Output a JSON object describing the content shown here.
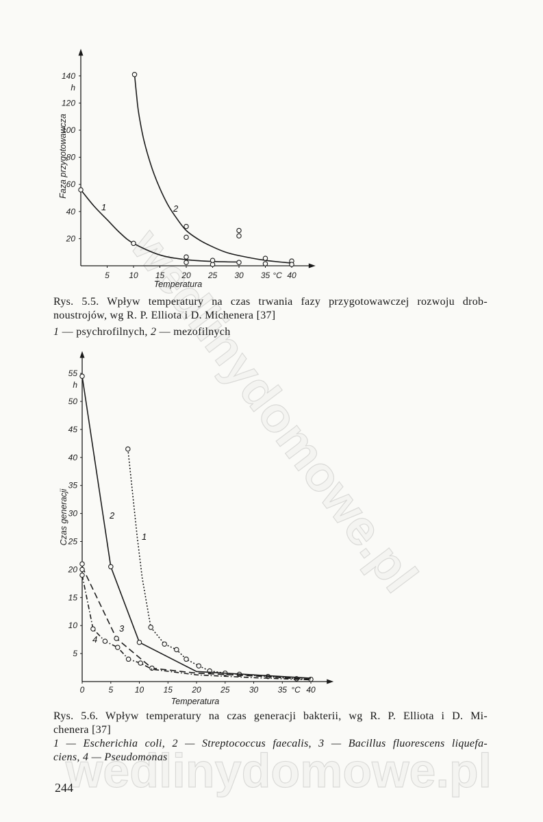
{
  "page": {
    "number": "244",
    "watermark": "wedlinydomowe.pl"
  },
  "figures": [
    {
      "caption": {
        "line1": "Rys. 5.5. Wpływ temperatury na czas trwania fazy przygotowawczej rozwoju drob-",
        "line2": "noustrojów, wg R. P. Elliota i D. Michenera [37]",
        "legend": [
          {
            "num": "1",
            "label": "— psychrofilnych,"
          },
          {
            "num": "2",
            "label": "— mezofilnych"
          }
        ]
      }
    },
    {
      "caption": {
        "line1": "Rys. 5.6. Wpływ temperatury na czas generacji bakterii, wg R. P. Elliota i D. Mi-",
        "line2": "chenera [37]",
        "legend_line1": "1 — Escherichia coli, 2 — Streptococcus faecalis, 3 — Bacillus fluorescens liquefa-",
        "legend_line2": "ciens, 4 — Pseudomonas"
      }
    }
  ],
  "chart_data": [
    {
      "type": "line",
      "xlabel": "Temperatura",
      "ylabel": "Faza przygotowawcza",
      "x_unit": "°C",
      "y_unit": "h",
      "xlim": [
        0,
        44
      ],
      "ylim": [
        0,
        158
      ],
      "xticks": [
        5,
        10,
        15,
        20,
        25,
        30,
        35,
        40
      ],
      "yticks": [
        20,
        40,
        60,
        80,
        100,
        120,
        140
      ],
      "grid": false,
      "series": [
        {
          "name": "1",
          "line_style": "solid",
          "curve": "smooth",
          "values": [
            [
              0,
              56
            ],
            [
              2.5,
              44
            ],
            [
              5,
              34
            ],
            [
              7.5,
              24
            ],
            [
              10,
              16.5
            ],
            [
              15,
              8
            ],
            [
              20,
              4.5
            ],
            [
              25,
              3.2
            ],
            [
              30,
              2.8
            ]
          ],
          "markers": [
            [
              0,
              56
            ],
            [
              10,
              16.5
            ],
            [
              20,
              2.5
            ],
            [
              25,
              1
            ],
            [
              30,
              2.5
            ]
          ]
        },
        {
          "name": "2",
          "line_style": "solid",
          "curve": "smooth",
          "values": [
            [
              10.2,
              141
            ],
            [
              10.6,
              125
            ],
            [
              11,
              112
            ],
            [
              12,
              92
            ],
            [
              13.5,
              72
            ],
            [
              15,
              57
            ],
            [
              16.5,
              45
            ],
            [
              18,
              36
            ],
            [
              20,
              26
            ],
            [
              22.5,
              19
            ],
            [
              25,
              14
            ],
            [
              27.5,
              10
            ],
            [
              30,
              7.5
            ],
            [
              35,
              4
            ],
            [
              40,
              2
            ]
          ],
          "markers": [
            [
              10.2,
              141
            ],
            [
              20,
              29
            ],
            [
              20,
              21
            ],
            [
              20,
              6.5
            ],
            [
              25,
              4
            ],
            [
              30,
              26
            ],
            [
              30,
              22
            ],
            [
              35,
              5.5
            ],
            [
              35,
              1.5
            ],
            [
              40,
              3.5
            ],
            [
              40,
              1
            ]
          ]
        }
      ]
    },
    {
      "type": "line",
      "xlabel": "Temperatura",
      "ylabel": "Czas generacji",
      "x_unit": "°C",
      "y_unit": "h",
      "xlim": [
        0,
        43.5
      ],
      "ylim": [
        0,
        58.5
      ],
      "xticks": [
        0,
        5,
        10,
        15,
        20,
        25,
        30,
        35,
        40
      ],
      "yticks": [
        5,
        10,
        15,
        20,
        25,
        30,
        35,
        40,
        45,
        50,
        55
      ],
      "grid": false,
      "series": [
        {
          "name": "1",
          "line_style": "dotted",
          "curve": "linear",
          "values": [
            [
              8,
              41.5
            ],
            [
              9.6,
              26
            ],
            [
              10.5,
              18.5
            ],
            [
              12,
              9.7
            ],
            [
              14.4,
              6.7
            ],
            [
              16.5,
              5.7
            ],
            [
              18.2,
              4
            ],
            [
              20.4,
              2.8
            ],
            [
              22.3,
              1.9
            ],
            [
              25,
              1.5
            ],
            [
              27.5,
              1.3
            ],
            [
              30,
              1.1
            ],
            [
              32.5,
              0.9
            ],
            [
              35,
              0.7
            ],
            [
              37.5,
              0.5
            ],
            [
              40,
              0.4
            ]
          ],
          "markers": [
            [
              8,
              41.5
            ],
            [
              12,
              9.7
            ],
            [
              14.4,
              6.7
            ],
            [
              16.5,
              5.7
            ],
            [
              18.2,
              4
            ],
            [
              20.4,
              2.8
            ],
            [
              22.3,
              1.9
            ],
            [
              25,
              1.5
            ],
            [
              27.5,
              1.3
            ],
            [
              32.5,
              0.9
            ],
            [
              37.5,
              0.5
            ],
            [
              40,
              0.4
            ]
          ]
        },
        {
          "name": "2",
          "line_style": "solid",
          "curve": "linear",
          "values": [
            [
              0,
              54.5
            ],
            [
              5,
              20.5
            ],
            [
              10,
              7
            ],
            [
              20,
              1.8
            ],
            [
              30,
              1.2
            ],
            [
              40,
              0.6
            ]
          ],
          "markers": [
            [
              0,
              54.5
            ],
            [
              5,
              20.5
            ],
            [
              10,
              7
            ]
          ]
        },
        {
          "name": "3",
          "line_style": "dashed",
          "curve": "linear",
          "values": [
            [
              0,
              20.5
            ],
            [
              6,
              7.7
            ],
            [
              12.2,
              2.4
            ],
            [
              20,
              1.5
            ],
            [
              30,
              1
            ],
            [
              40,
              0.4
            ]
          ],
          "markers": [
            [
              0,
              21
            ],
            [
              0,
              20
            ],
            [
              6,
              7.7
            ],
            [
              12.2,
              2.4
            ]
          ]
        },
        {
          "name": "4",
          "line_style": "dashdot",
          "curve": "linear",
          "values": [
            [
              0,
              19
            ],
            [
              1.9,
              9.4
            ],
            [
              4,
              7.2
            ],
            [
              6.2,
              6.1
            ],
            [
              8.1,
              4
            ],
            [
              10.2,
              3.3
            ],
            [
              12.2,
              2.2
            ],
            [
              20,
              1.2
            ],
            [
              30,
              0.7
            ],
            [
              40,
              0.3
            ]
          ],
          "markers": [
            [
              0,
              19
            ],
            [
              1.9,
              9.4
            ],
            [
              4,
              7.2
            ],
            [
              6.2,
              6.1
            ],
            [
              8.1,
              4
            ],
            [
              10.2,
              3.3
            ]
          ]
        }
      ]
    }
  ]
}
